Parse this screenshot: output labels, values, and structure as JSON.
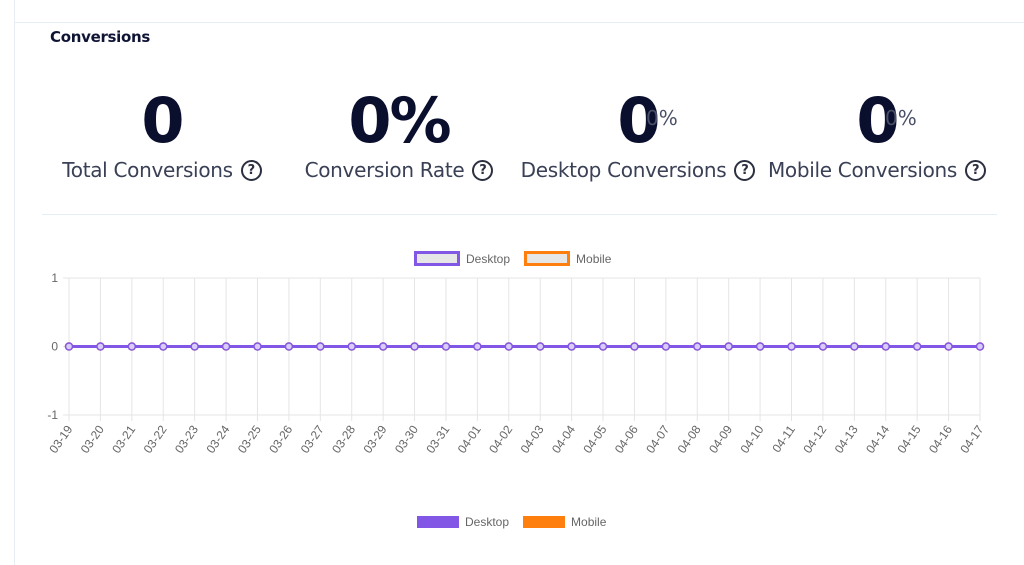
{
  "card": {
    "title": "Conversions"
  },
  "stats": [
    {
      "value": "0",
      "suffix": "",
      "label": "Total Conversions",
      "help": "?"
    },
    {
      "value": "0%",
      "suffix": "",
      "label": "Conversion Rate",
      "help": "?"
    },
    {
      "value": "0",
      "suffix": "0%",
      "label": "Desktop Conversions",
      "help": "?"
    },
    {
      "value": "0",
      "suffix": "0%",
      "label": "Mobile Conversions",
      "help": "?"
    }
  ],
  "legend_top": [
    {
      "label": "Desktop"
    },
    {
      "label": "Mobile"
    }
  ],
  "legend_bottom": [
    {
      "label": "Desktop"
    },
    {
      "label": "Mobile"
    }
  ],
  "colors": {
    "desktop": "#8257e5",
    "mobile": "#ff7f0e",
    "grid": "#e5e5e5",
    "tick": "#666666"
  },
  "chart_data": {
    "type": "line",
    "categories": [
      "03-19",
      "03-20",
      "03-21",
      "03-22",
      "03-23",
      "03-24",
      "03-25",
      "03-26",
      "03-27",
      "03-28",
      "03-29",
      "03-30",
      "03-31",
      "04-01",
      "04-02",
      "04-03",
      "04-04",
      "04-05",
      "04-06",
      "04-07",
      "04-08",
      "04-09",
      "04-10",
      "04-11",
      "04-12",
      "04-13",
      "04-14",
      "04-15",
      "04-16",
      "04-17"
    ],
    "series": [
      {
        "name": "Desktop",
        "values": [
          0,
          0,
          0,
          0,
          0,
          0,
          0,
          0,
          0,
          0,
          0,
          0,
          0,
          0,
          0,
          0,
          0,
          0,
          0,
          0,
          0,
          0,
          0,
          0,
          0,
          0,
          0,
          0,
          0,
          0
        ]
      },
      {
        "name": "Mobile",
        "values": [
          0,
          0,
          0,
          0,
          0,
          0,
          0,
          0,
          0,
          0,
          0,
          0,
          0,
          0,
          0,
          0,
          0,
          0,
          0,
          0,
          0,
          0,
          0,
          0,
          0,
          0,
          0,
          0,
          0,
          0
        ]
      }
    ],
    "ylim": [
      -1,
      1
    ],
    "yticks": [
      "1",
      "0",
      "-1"
    ],
    "grid": true,
    "legend": "top"
  }
}
